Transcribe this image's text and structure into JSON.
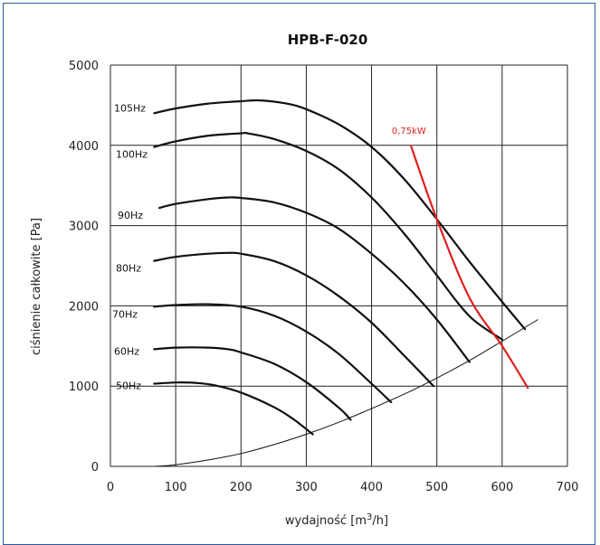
{
  "chart_data": {
    "type": "line",
    "title": "HPB-F-020",
    "xlabel": "wydajność [m",
    "xlabel_sup": "3",
    "xlabel_tail": "/h]",
    "ylabel": "ciśnienie całkowite [Pa]",
    "xlim": [
      0,
      700
    ],
    "ylim": [
      0,
      5000
    ],
    "grid": true,
    "x_ticks": [
      "0",
      "100",
      "200",
      "300",
      "400",
      "500",
      "600",
      "700"
    ],
    "y_ticks": [
      "0",
      "1000",
      "2000",
      "3000",
      "4000",
      "5000"
    ],
    "colors": {
      "curve": "#111111",
      "power": "#e02020",
      "grid": "#222222"
    },
    "series": [
      {
        "name": "105Hz",
        "x": [
          67,
          100,
          150,
          200,
          230,
          270,
          300,
          350,
          400,
          450,
          500,
          550,
          600,
          635
        ],
        "y": [
          4400,
          4460,
          4520,
          4550,
          4560,
          4520,
          4450,
          4260,
          3980,
          3580,
          3080,
          2550,
          2050,
          1710
        ]
      },
      {
        "name": "100Hz",
        "x": [
          67,
          100,
          150,
          200,
          210,
          250,
          300,
          350,
          400,
          450,
          500,
          550,
          600
        ],
        "y": [
          3980,
          4050,
          4120,
          4150,
          4150,
          4080,
          3930,
          3700,
          3350,
          2900,
          2380,
          1870,
          1580
        ]
      },
      {
        "name": "90Hz",
        "x": [
          75,
          100,
          150,
          180,
          200,
          250,
          300,
          350,
          400,
          450,
          500,
          550
        ],
        "y": [
          3220,
          3270,
          3330,
          3350,
          3345,
          3290,
          3160,
          2960,
          2650,
          2280,
          1830,
          1300
        ]
      },
      {
        "name": "80Hz",
        "x": [
          67,
          100,
          150,
          180,
          200,
          250,
          300,
          350,
          400,
          450,
          495
        ],
        "y": [
          2560,
          2610,
          2650,
          2660,
          2650,
          2560,
          2380,
          2120,
          1790,
          1380,
          1000
        ]
      },
      {
        "name": "70Hz",
        "x": [
          67,
          100,
          150,
          200,
          250,
          300,
          350,
          400,
          430
        ],
        "y": [
          1990,
          2010,
          2020,
          1990,
          1880,
          1680,
          1400,
          1030,
          800
        ]
      },
      {
        "name": "60Hz",
        "x": [
          67,
          100,
          150,
          180,
          200,
          250,
          300,
          350,
          368
        ],
        "y": [
          1460,
          1480,
          1480,
          1460,
          1420,
          1280,
          1050,
          730,
          580
        ]
      },
      {
        "name": "50Hz",
        "x": [
          67,
          100,
          130,
          160,
          200,
          250,
          280,
          310
        ],
        "y": [
          1030,
          1045,
          1040,
          1010,
          920,
          740,
          590,
          400
        ]
      }
    ],
    "system_curve": {
      "x": [
        67,
        100,
        150,
        200,
        250,
        300,
        350,
        400,
        450,
        500,
        550,
        600,
        655
      ],
      "y": [
        0,
        20,
        80,
        160,
        270,
        400,
        550,
        720,
        900,
        1100,
        1320,
        1560,
        1830
      ]
    },
    "power_line": {
      "name": "0,75kW",
      "x": [
        460,
        500,
        550,
        600,
        640
      ],
      "y": [
        4000,
        3080,
        2100,
        1500,
        970
      ]
    }
  }
}
